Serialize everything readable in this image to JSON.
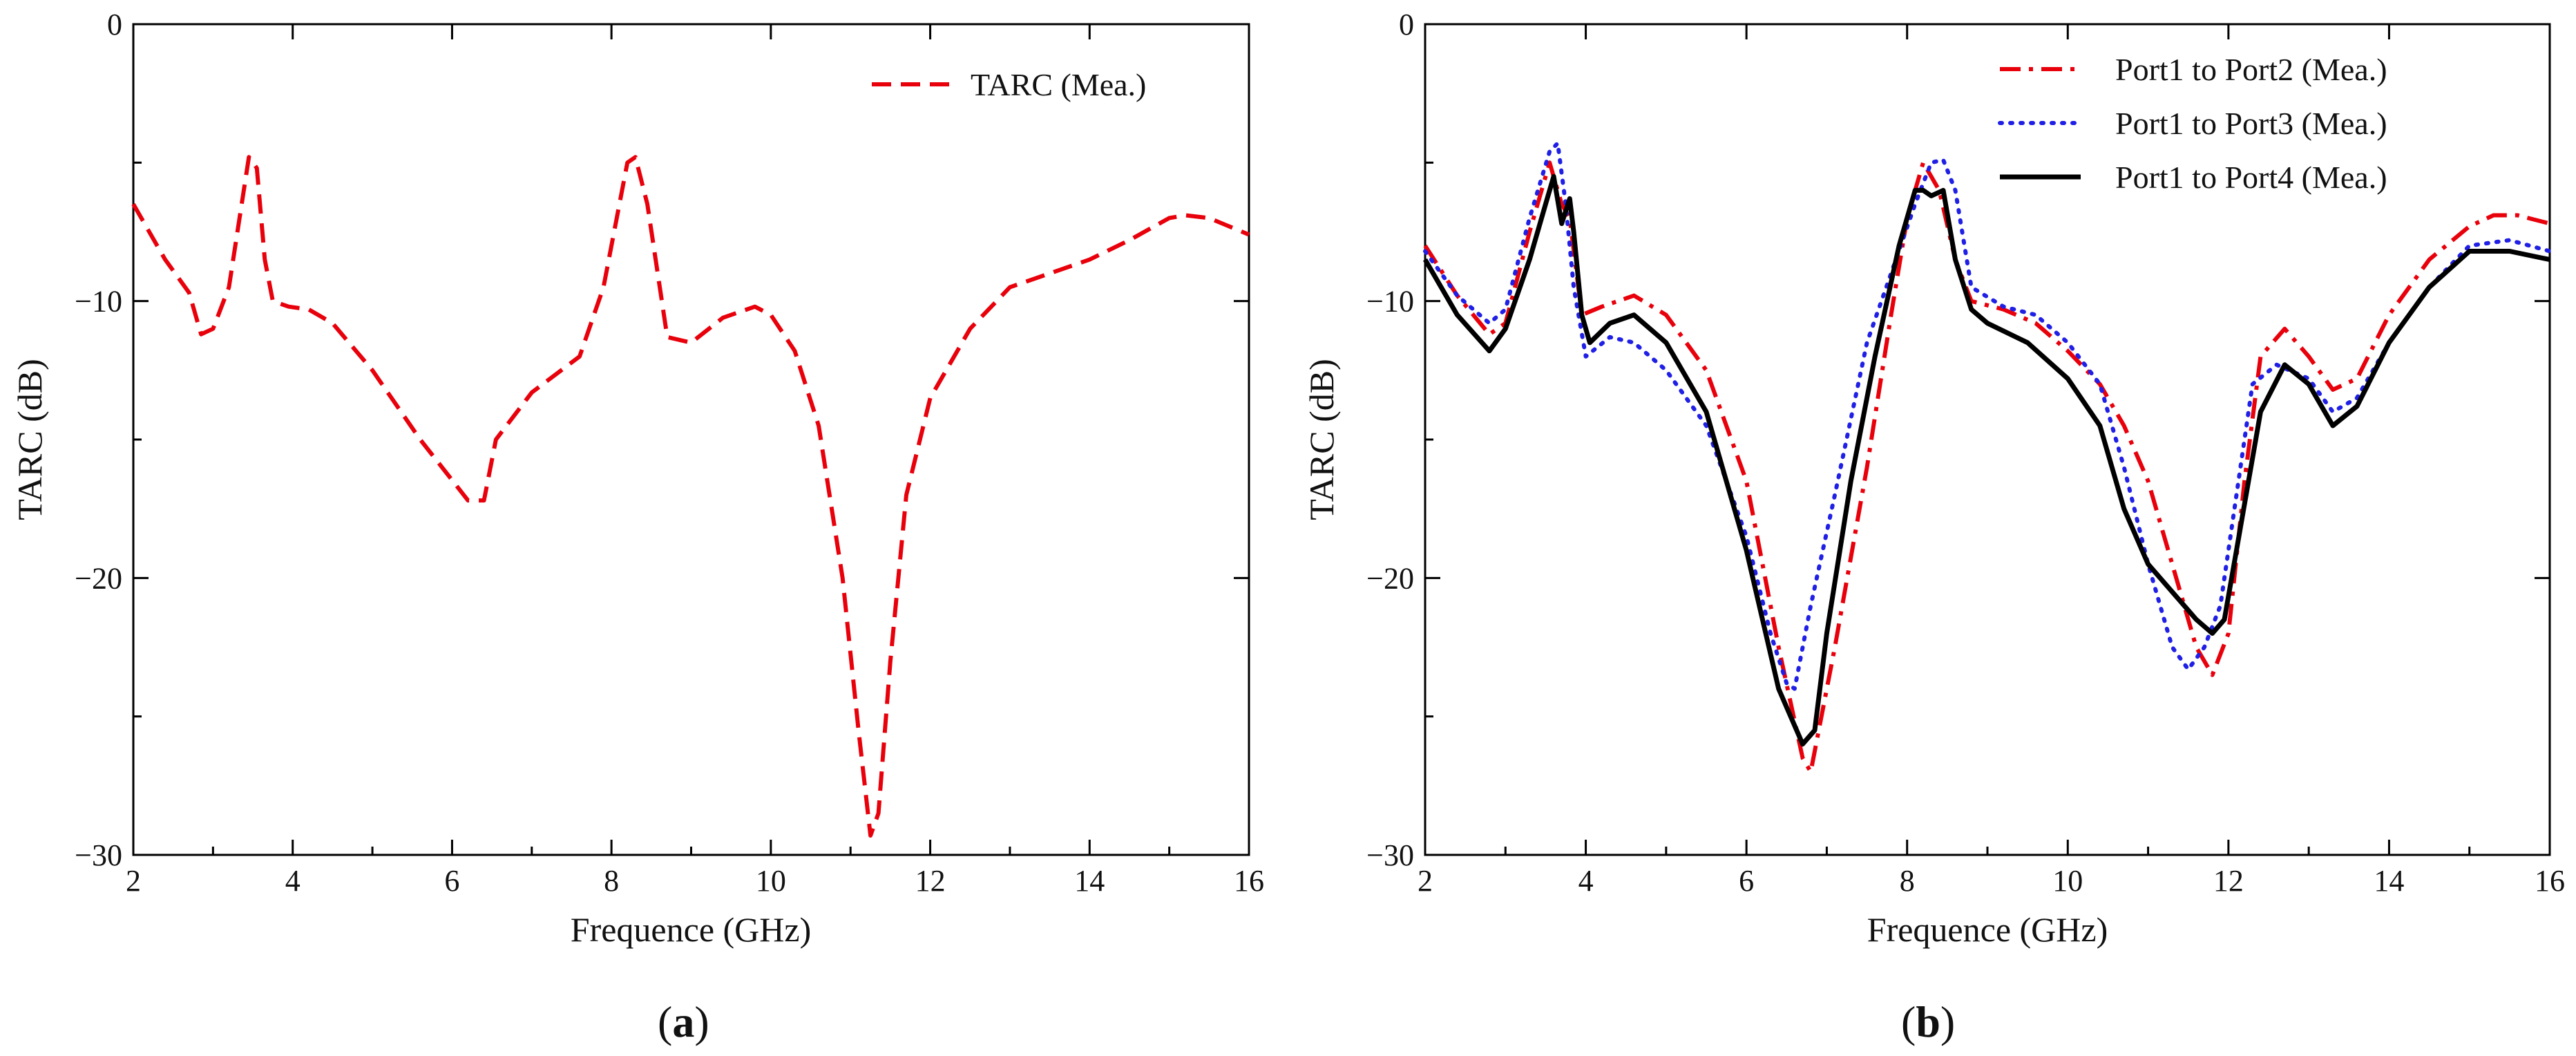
{
  "chart_data": [
    {
      "panel": "(a)",
      "panel_letter": "a",
      "type": "line",
      "title": "",
      "xlabel": "Frequence (GHz)",
      "ylabel": "TARC (dB)",
      "xlim": [
        2,
        16
      ],
      "ylim": [
        -30,
        0
      ],
      "xticks": [
        2,
        4,
        6,
        8,
        10,
        12,
        14,
        16
      ],
      "yticks": [
        0,
        -10,
        -20,
        -30
      ],
      "xtick_labels": [
        "2",
        "4",
        "6",
        "8",
        "10",
        "12",
        "14",
        "16"
      ],
      "ytick_labels": [
        "0",
        "−10",
        "−20",
        "−30"
      ],
      "grid": false,
      "legend": "top-right",
      "series": [
        {
          "name": "TARC (Mea.)",
          "color": "#e8000b",
          "style": "dashed",
          "x": [
            2.0,
            2.4,
            2.7,
            2.85,
            3.0,
            3.2,
            3.45,
            3.55,
            3.65,
            3.75,
            3.95,
            4.2,
            4.5,
            5.0,
            5.6,
            6.2,
            6.4,
            6.55,
            7.0,
            7.6,
            7.9,
            8.2,
            8.3,
            8.45,
            8.7,
            9.0,
            9.4,
            9.8,
            10.0,
            10.3,
            10.6,
            10.9,
            11.1,
            11.25,
            11.35,
            11.5,
            11.7,
            12.0,
            12.5,
            13.0,
            13.5,
            14.0,
            14.5,
            15.0,
            15.2,
            15.5,
            16.0
          ],
          "y": [
            -6.5,
            -8.5,
            -9.7,
            -11.2,
            -11.0,
            -9.5,
            -4.8,
            -5.2,
            -8.5,
            -10.0,
            -10.2,
            -10.3,
            -10.8,
            -12.5,
            -15.0,
            -17.2,
            -17.2,
            -15.0,
            -13.3,
            -12.0,
            -9.5,
            -5.0,
            -4.8,
            -6.5,
            -11.3,
            -11.5,
            -10.6,
            -10.2,
            -10.5,
            -11.8,
            -14.5,
            -20.0,
            -25.5,
            -29.3,
            -28.5,
            -23.0,
            -17.0,
            -13.5,
            -11.0,
            -9.5,
            -9.0,
            -8.5,
            -7.8,
            -7.0,
            -6.9,
            -7.0,
            -7.6
          ]
        }
      ]
    },
    {
      "panel": "(b)",
      "panel_letter": "b",
      "type": "line",
      "title": "",
      "xlabel": "Frequence (GHz)",
      "ylabel": "TARC (dB)",
      "xlim": [
        2,
        16
      ],
      "ylim": [
        -30,
        0
      ],
      "xticks": [
        2,
        4,
        6,
        8,
        10,
        12,
        14,
        16
      ],
      "yticks": [
        0,
        -10,
        -20,
        -30
      ],
      "xtick_labels": [
        "2",
        "4",
        "6",
        "8",
        "10",
        "12",
        "14",
        "16"
      ],
      "ytick_labels": [
        "0",
        "−10",
        "−20",
        "−30"
      ],
      "grid": false,
      "legend": "top-right",
      "series": [
        {
          "name": "Port1 to Port2 (Mea.)",
          "color": "#e8000b",
          "style": "dashdot",
          "x": [
            2.0,
            2.4,
            2.8,
            3.0,
            3.3,
            3.55,
            3.7,
            3.8,
            3.95,
            4.2,
            4.6,
            5.0,
            5.5,
            6.0,
            6.4,
            6.7,
            6.8,
            7.1,
            7.5,
            7.8,
            8.0,
            8.2,
            8.4,
            8.6,
            8.8,
            9.2,
            9.6,
            10.0,
            10.4,
            10.7,
            11.0,
            11.3,
            11.6,
            11.8,
            12.0,
            12.2,
            12.4,
            12.7,
            13.0,
            13.3,
            13.6,
            14.0,
            14.5,
            15.0,
            15.3,
            15.6,
            16.0
          ],
          "y": [
            -8.0,
            -9.8,
            -11.2,
            -10.8,
            -7.5,
            -5.0,
            -6.5,
            -7.0,
            -10.5,
            -10.2,
            -9.8,
            -10.5,
            -12.5,
            -16.5,
            -22.5,
            -26.5,
            -27.0,
            -22.5,
            -16.0,
            -10.5,
            -7.0,
            -5.0,
            -6.0,
            -8.5,
            -10.0,
            -10.3,
            -10.8,
            -11.8,
            -13.0,
            -14.5,
            -16.5,
            -19.5,
            -22.5,
            -23.5,
            -22.0,
            -16.5,
            -12.0,
            -11.0,
            -12.0,
            -13.2,
            -12.8,
            -10.5,
            -8.5,
            -7.3,
            -6.9,
            -6.9,
            -7.2
          ]
        },
        {
          "name": "Port1 to Port3 (Mea.)",
          "color": "#1f1fe6",
          "style": "dotted",
          "x": [
            2.0,
            2.4,
            2.8,
            3.0,
            3.3,
            3.55,
            3.65,
            3.75,
            3.85,
            4.0,
            4.3,
            4.6,
            5.0,
            5.5,
            6.0,
            6.3,
            6.5,
            6.6,
            6.8,
            7.1,
            7.5,
            7.8,
            8.1,
            8.3,
            8.45,
            8.6,
            8.8,
            9.2,
            9.6,
            10.0,
            10.4,
            10.7,
            11.0,
            11.3,
            11.5,
            11.7,
            11.9,
            12.1,
            12.3,
            12.6,
            13.0,
            13.3,
            13.6,
            14.0,
            14.5,
            15.0,
            15.5,
            16.0
          ],
          "y": [
            -8.2,
            -9.8,
            -10.8,
            -10.3,
            -7.0,
            -4.6,
            -4.3,
            -6.5,
            -9.5,
            -12.0,
            -11.3,
            -11.5,
            -12.5,
            -14.5,
            -18.5,
            -22.0,
            -23.8,
            -24.0,
            -21.0,
            -17.0,
            -11.5,
            -9.0,
            -6.5,
            -5.0,
            -4.9,
            -6.0,
            -9.5,
            -10.2,
            -10.5,
            -11.5,
            -13.0,
            -16.0,
            -19.5,
            -22.5,
            -23.3,
            -22.5,
            -21.0,
            -17.0,
            -13.0,
            -12.3,
            -12.8,
            -14.0,
            -13.5,
            -11.5,
            -9.5,
            -8.0,
            -7.8,
            -8.2
          ]
        },
        {
          "name": "Port1 to Port4 (Mea.)",
          "color": "#000000",
          "style": "solid",
          "x": [
            2.0,
            2.4,
            2.8,
            3.0,
            3.3,
            3.5,
            3.6,
            3.7,
            3.8,
            3.85,
            3.95,
            4.05,
            4.3,
            4.6,
            5.0,
            5.5,
            6.0,
            6.4,
            6.7,
            6.85,
            7.0,
            7.3,
            7.6,
            7.9,
            8.1,
            8.2,
            8.3,
            8.45,
            8.6,
            8.8,
            9.0,
            9.5,
            10.0,
            10.4,
            10.7,
            11.0,
            11.3,
            11.6,
            11.8,
            11.95,
            12.1,
            12.4,
            12.7,
            13.0,
            13.3,
            13.6,
            14.0,
            14.5,
            15.0,
            15.5,
            16.0
          ],
          "y": [
            -8.5,
            -10.5,
            -11.8,
            -11.0,
            -8.5,
            -6.5,
            -5.5,
            -7.2,
            -6.3,
            -7.5,
            -10.5,
            -11.5,
            -10.8,
            -10.5,
            -11.5,
            -14.0,
            -19.0,
            -24.0,
            -26.0,
            -25.5,
            -22.0,
            -16.5,
            -12.0,
            -8.0,
            -6.0,
            -6.0,
            -6.2,
            -6.0,
            -8.5,
            -10.3,
            -10.8,
            -11.5,
            -12.8,
            -14.5,
            -17.5,
            -19.5,
            -20.5,
            -21.5,
            -22.0,
            -21.5,
            -19.0,
            -14.0,
            -12.3,
            -13.0,
            -14.5,
            -13.8,
            -11.5,
            -9.5,
            -8.2,
            -8.2,
            -8.5
          ]
        }
      ]
    }
  ],
  "legends": [
    {
      "items": [
        "TARC (Mea.)"
      ]
    },
    {
      "items": [
        "Port1 to Port2 (Mea.)",
        "Port1 to Port3 (Mea.)",
        "Port1 to Port4 (Mea.)"
      ]
    }
  ]
}
